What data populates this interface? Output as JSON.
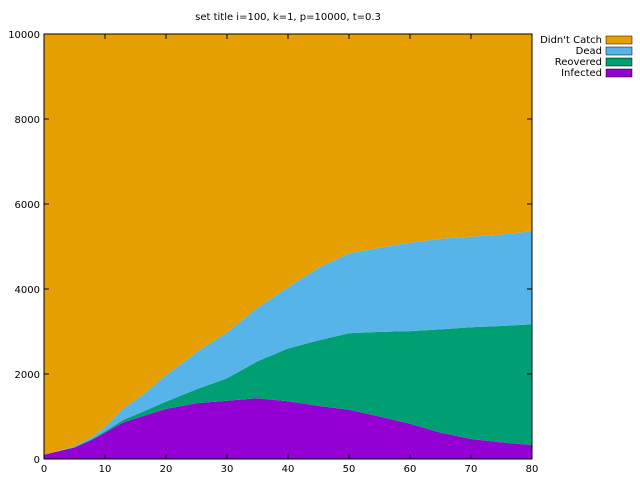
{
  "chart_data": {
    "type": "area",
    "stacked": true,
    "title": "set title i=100, k=1, p=10000, t=0.3",
    "xlabel": "",
    "ylabel": "",
    "xlim": [
      0,
      80
    ],
    "ylim": [
      0,
      10000
    ],
    "xticks": [
      0,
      10,
      20,
      30,
      40,
      50,
      60,
      70,
      80
    ],
    "yticks": [
      0,
      2000,
      4000,
      6000,
      8000,
      10000
    ],
    "grid": false,
    "legend": "top-right",
    "x": [
      0,
      2,
      5,
      8,
      10,
      13,
      16,
      20,
      25,
      30,
      35,
      40,
      45,
      50,
      55,
      60,
      65,
      70,
      75,
      80
    ],
    "series": [
      {
        "name": "Infected",
        "color": "#9400d3",
        "values": [
          100,
          170,
          270,
          460,
          620,
          860,
          1000,
          1180,
          1310,
          1370,
          1430,
          1360,
          1250,
          1160,
          1000,
          830,
          620,
          470,
          390,
          330
        ]
      },
      {
        "name": "Reovered",
        "color": "#009e73",
        "values": [
          0,
          0,
          10,
          20,
          30,
          60,
          100,
          170,
          330,
          530,
          870,
          1240,
          1540,
          1800,
          1990,
          2180,
          2430,
          2630,
          2740,
          2840
        ]
      },
      {
        "name": "Dead",
        "color": "#56b4e9",
        "values": [
          0,
          5,
          20,
          50,
          110,
          270,
          390,
          620,
          870,
          1080,
          1260,
          1440,
          1710,
          1880,
          1980,
          2080,
          2130,
          2130,
          2150,
          2190
        ]
      },
      {
        "name": "Didn't Catch",
        "color": "#e69f00",
        "values": [
          9900,
          9825,
          9700,
          9470,
          9240,
          8810,
          8510,
          8030,
          7490,
          7020,
          6440,
          5960,
          5500,
          5160,
          5030,
          4910,
          4820,
          4770,
          4720,
          4640
        ]
      }
    ]
  }
}
